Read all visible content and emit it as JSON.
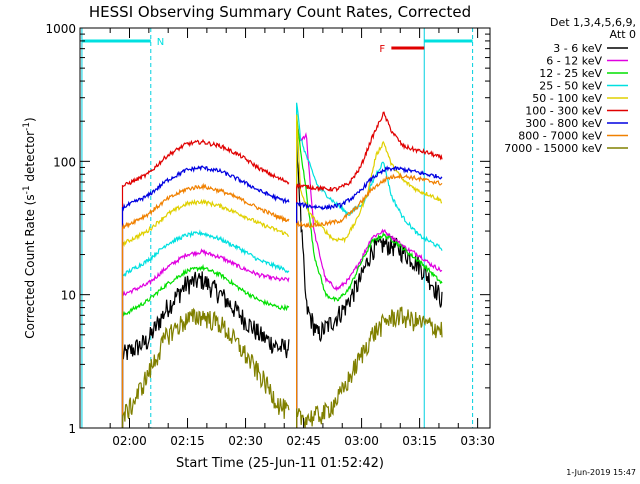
{
  "chart_data": {
    "type": "line",
    "title": "HESSI Observing Summary Count Rates, Corrected",
    "xlabel": "Start Time (25-Jun-11 01:52:42)",
    "ylabel": "Corrected Count Rate (s⁻¹ detector⁻¹)",
    "ylabel_base": "Corrected Count Rate (s",
    "ylabel_exp1": "-1",
    "ylabel_mid": " detector",
    "ylabel_exp2": "-1",
    "ylabel_end": ")",
    "yscale": "log",
    "ylim": [
      1,
      1000
    ],
    "xlim_minutes": [
      -5.5,
      100.5
    ],
    "y_ticks": [
      {
        "value": 1,
        "label": "1"
      },
      {
        "value": 10,
        "label": "10"
      },
      {
        "value": 100,
        "label": "100"
      },
      {
        "value": 1000,
        "label": "1000"
      }
    ],
    "x_ticks": [
      {
        "minutes": 7.3,
        "label": "02:00"
      },
      {
        "minutes": 22.3,
        "label": "02:15"
      },
      {
        "minutes": 37.3,
        "label": "02:30"
      },
      {
        "minutes": 52.3,
        "label": "02:45"
      },
      {
        "minutes": 67.3,
        "label": "03:00"
      },
      {
        "minutes": 82.3,
        "label": "03:15"
      },
      {
        "minutes": 97.3,
        "label": "03:30"
      }
    ],
    "legend_header": [
      "Det 1,3,4,5,6,9,",
      "Att 0"
    ],
    "legend_position": "right",
    "timestamp": "1-Jun-2019 15:47",
    "markers": {
      "night": {
        "label": "N",
        "color": "#00e0e0",
        "start": -5.0,
        "end": 12.8
      },
      "flare": {
        "label": "F",
        "color": "#e00000",
        "start": 75.0,
        "end": 83.5
      },
      "day": {
        "color": "#00e0e0",
        "start": 83.5,
        "end": 96.0
      },
      "vertical_lines": [
        {
          "minutes": -5.0,
          "style": "solid"
        },
        {
          "minutes": 12.8,
          "style": "dashed"
        },
        {
          "minutes": 83.5,
          "style": "solid"
        },
        {
          "minutes": 96.0,
          "style": "dashed"
        }
      ]
    },
    "data_window": {
      "start": 5.5,
      "gap_start": 48.5,
      "gap_end": 50.5,
      "end": 88.2
    },
    "series": [
      {
        "name": "3 - 6 keV",
        "color": "#000000",
        "points": [
          [
            5.5,
            3.5
          ],
          [
            12,
            4.5
          ],
          [
            17,
            8
          ],
          [
            22,
            12
          ],
          [
            26,
            13
          ],
          [
            31,
            10
          ],
          [
            36,
            7
          ],
          [
            41,
            5
          ],
          [
            46,
            4
          ],
          [
            48.5,
            4
          ],
          [
            50.5,
            160
          ],
          [
            51.5,
            40
          ],
          [
            53,
            8
          ],
          [
            56,
            5
          ],
          [
            59,
            6
          ],
          [
            63,
            8
          ],
          [
            67,
            13
          ],
          [
            70,
            22
          ],
          [
            73,
            24
          ],
          [
            76,
            23
          ],
          [
            79,
            20
          ],
          [
            82,
            17
          ],
          [
            85,
            13
          ],
          [
            88.2,
            9
          ]
        ]
      },
      {
        "name": "6 - 12 keV",
        "color": "#e000e0",
        "points": [
          [
            5.5,
            10
          ],
          [
            12,
            12
          ],
          [
            17,
            16
          ],
          [
            22,
            20
          ],
          [
            26,
            21
          ],
          [
            31,
            19
          ],
          [
            36,
            16
          ],
          [
            41,
            14
          ],
          [
            46,
            13
          ],
          [
            48.5,
            13
          ],
          [
            50.5,
            200
          ],
          [
            51.5,
            140
          ],
          [
            53,
            160
          ],
          [
            55,
            30
          ],
          [
            58,
            13
          ],
          [
            61,
            11
          ],
          [
            64,
            13
          ],
          [
            67,
            18
          ],
          [
            70,
            27
          ],
          [
            73,
            30
          ],
          [
            76,
            26
          ],
          [
            79,
            22
          ],
          [
            82,
            20
          ],
          [
            85,
            17
          ],
          [
            88.2,
            15
          ]
        ]
      },
      {
        "name": "12 - 25 keV",
        "color": "#00e000",
        "points": [
          [
            5.5,
            7
          ],
          [
            12,
            9
          ],
          [
            17,
            12
          ],
          [
            22,
            15
          ],
          [
            26,
            16
          ],
          [
            31,
            14
          ],
          [
            36,
            11
          ],
          [
            41,
            9
          ],
          [
            46,
            8
          ],
          [
            48.5,
            8
          ],
          [
            50.5,
            220
          ],
          [
            51.5,
            120
          ],
          [
            53,
            60
          ],
          [
            55,
            20
          ],
          [
            58,
            10
          ],
          [
            61,
            9
          ],
          [
            64,
            11
          ],
          [
            67,
            17
          ],
          [
            70,
            25
          ],
          [
            73,
            28
          ],
          [
            76,
            25
          ],
          [
            79,
            21
          ],
          [
            82,
            18
          ],
          [
            85,
            15
          ],
          [
            88.2,
            12
          ]
        ]
      },
      {
        "name": "25 - 50 keV",
        "color": "#00e0e0",
        "points": [
          [
            5.5,
            14
          ],
          [
            12,
            18
          ],
          [
            17,
            24
          ],
          [
            22,
            28
          ],
          [
            26,
            29
          ],
          [
            31,
            26
          ],
          [
            36,
            22
          ],
          [
            41,
            18
          ],
          [
            46,
            16
          ],
          [
            48.5,
            15
          ],
          [
            50.5,
            280
          ],
          [
            51.5,
            150
          ],
          [
            53,
            110
          ],
          [
            56,
            65
          ],
          [
            60,
            50
          ],
          [
            64,
            40
          ],
          [
            68,
            50
          ],
          [
            71,
            80
          ],
          [
            73,
            100
          ],
          [
            75,
            55
          ],
          [
            78,
            38
          ],
          [
            82,
            28
          ],
          [
            85,
            25
          ],
          [
            88.2,
            22
          ]
        ]
      },
      {
        "name": "50 - 100 keV",
        "color": "#e0d000",
        "points": [
          [
            5.5,
            24
          ],
          [
            12,
            30
          ],
          [
            17,
            40
          ],
          [
            22,
            48
          ],
          [
            26,
            50
          ],
          [
            31,
            46
          ],
          [
            36,
            40
          ],
          [
            41,
            34
          ],
          [
            46,
            30
          ],
          [
            48.5,
            28
          ],
          [
            50.5,
            230
          ],
          [
            51.5,
            60
          ],
          [
            54,
            40
          ],
          [
            57,
            32
          ],
          [
            60,
            26
          ],
          [
            63,
            26
          ],
          [
            66,
            36
          ],
          [
            69,
            60
          ],
          [
            71,
            110
          ],
          [
            73,
            140
          ],
          [
            75,
            95
          ],
          [
            78,
            72
          ],
          [
            82,
            60
          ],
          [
            85,
            56
          ],
          [
            88.2,
            50
          ]
        ]
      },
      {
        "name": "100 - 300 keV",
        "color": "#e00000",
        "points": [
          [
            5.5,
            65
          ],
          [
            12,
            80
          ],
          [
            17,
            110
          ],
          [
            22,
            135
          ],
          [
            26,
            140
          ],
          [
            31,
            130
          ],
          [
            36,
            110
          ],
          [
            41,
            88
          ],
          [
            46,
            74
          ],
          [
            48.5,
            70
          ],
          [
            50.5,
            66
          ],
          [
            54,
            64
          ],
          [
            58,
            62
          ],
          [
            61,
            62
          ],
          [
            64,
            68
          ],
          [
            67,
            90
          ],
          [
            70,
            150
          ],
          [
            73,
            230
          ],
          [
            75,
            170
          ],
          [
            78,
            130
          ],
          [
            82,
            120
          ],
          [
            85,
            115
          ],
          [
            88.2,
            105
          ]
        ]
      },
      {
        "name": "300 - 800 keV",
        "color": "#0000e0",
        "points": [
          [
            5.5,
            45
          ],
          [
            12,
            55
          ],
          [
            17,
            72
          ],
          [
            22,
            86
          ],
          [
            26,
            90
          ],
          [
            31,
            84
          ],
          [
            36,
            72
          ],
          [
            41,
            60
          ],
          [
            46,
            52
          ],
          [
            48.5,
            50
          ],
          [
            50.5,
            48
          ],
          [
            54,
            46
          ],
          [
            58,
            45
          ],
          [
            62,
            47
          ],
          [
            66,
            56
          ],
          [
            70,
            75
          ],
          [
            74,
            88
          ],
          [
            77,
            88
          ],
          [
            80,
            85
          ],
          [
            84,
            80
          ],
          [
            88.2,
            76
          ]
        ]
      },
      {
        "name": "800 - 7000 keV",
        "color": "#f08000",
        "points": [
          [
            5.5,
            32
          ],
          [
            12,
            40
          ],
          [
            17,
            52
          ],
          [
            22,
            62
          ],
          [
            26,
            65
          ],
          [
            31,
            60
          ],
          [
            36,
            52
          ],
          [
            41,
            44
          ],
          [
            46,
            38
          ],
          [
            48.5,
            36
          ],
          [
            50.5,
            34
          ],
          [
            54,
            33
          ],
          [
            58,
            34
          ],
          [
            62,
            36
          ],
          [
            66,
            45
          ],
          [
            70,
            62
          ],
          [
            74,
            75
          ],
          [
            77,
            78
          ],
          [
            80,
            76
          ],
          [
            84,
            72
          ],
          [
            88.2,
            68
          ]
        ]
      },
      {
        "name": "7000 - 15000 keV",
        "color": "#808000",
        "points": [
          [
            5.5,
            1.2
          ],
          [
            8,
            1.5
          ],
          [
            12,
            2.5
          ],
          [
            17,
            5
          ],
          [
            22,
            6.5
          ],
          [
            26,
            7
          ],
          [
            31,
            6
          ],
          [
            36,
            4
          ],
          [
            41,
            2.5
          ],
          [
            46,
            1.5
          ],
          [
            48.5,
            1.3
          ],
          [
            50.5,
            1.2
          ],
          [
            54,
            1.2
          ],
          [
            58,
            1.3
          ],
          [
            62,
            1.8
          ],
          [
            66,
            3
          ],
          [
            70,
            5
          ],
          [
            74,
            6.5
          ],
          [
            77,
            7
          ],
          [
            80,
            6.5
          ],
          [
            84,
            6
          ],
          [
            88.2,
            5.5
          ]
        ]
      }
    ]
  }
}
